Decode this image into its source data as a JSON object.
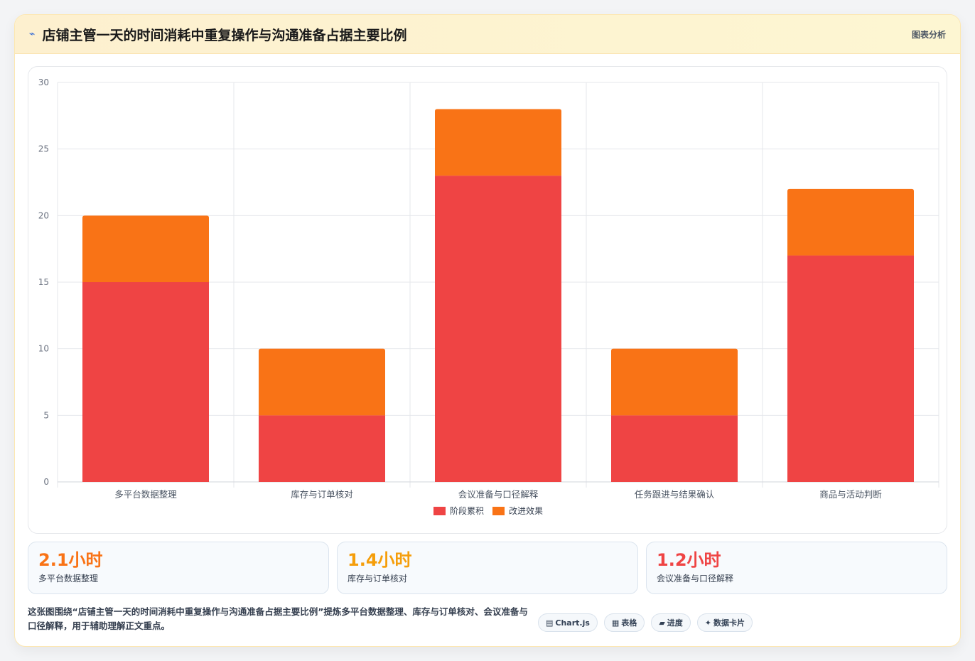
{
  "header": {
    "icon": "chart-icon",
    "title": "店铺主管一天的时间消耗中重复操作与沟通准备占据主要比例",
    "tag": "图表分析"
  },
  "chart_data": {
    "type": "bar",
    "stacked": true,
    "categories": [
      "多平台数据整理",
      "库存与订单核对",
      "会议准备与口径解释",
      "任务跟进与结果确认",
      "商品与活动判断"
    ],
    "series": [
      {
        "name": "阶段累积",
        "values": [
          15,
          5,
          23,
          5,
          17
        ],
        "color": "#ef4444"
      },
      {
        "name": "改进效果",
        "values": [
          5,
          5,
          5,
          5,
          5
        ],
        "color": "#f97316"
      }
    ],
    "ylim": [
      0,
      30
    ],
    "yticks": [
      "0",
      "5",
      "10",
      "15",
      "20",
      "25",
      "30"
    ],
    "grid": true,
    "legend": "bottom"
  },
  "stats": [
    {
      "value": "2.1小时",
      "label": "多平台数据整理",
      "color": "#f97316"
    },
    {
      "value": "1.4小时",
      "label": "库存与订单核对",
      "color": "#f59e0b"
    },
    {
      "value": "1.2小时",
      "label": "会议准备与口径解释",
      "color": "#ef4444"
    }
  ],
  "footer": {
    "text": "这张图围绕“店铺主管一天的时间消耗中重复操作与沟通准备占据主要比例”提炼多平台数据整理、库存与订单核对、会议准备与口径解释，用于辅助理解正文重点。"
  },
  "chips": [
    {
      "icon": "▤",
      "label": "Chart.js"
    },
    {
      "icon": "▦",
      "label": "表格"
    },
    {
      "icon": "▰",
      "label": "进度"
    },
    {
      "icon": "✦",
      "label": "数据卡片"
    }
  ]
}
